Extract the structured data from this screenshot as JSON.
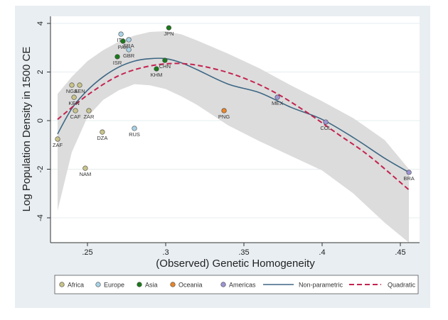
{
  "chart_data": {
    "type": "scatter",
    "title": "",
    "xlabel": "(Observed) Genetic Homogeneity",
    "ylabel": "Log Population Density in 1500 CE",
    "xlim": [
      0.227,
      0.452
    ],
    "ylim": [
      -5.0,
      4.3
    ],
    "xticks": [
      0.25,
      0.3,
      0.35,
      0.4,
      0.45
    ],
    "xtick_labels": [
      ".25",
      ".3",
      ".35",
      ".4",
      ".45"
    ],
    "yticks": [
      4,
      2,
      0,
      -2,
      -4
    ],
    "ytick_labels": [
      "4",
      "2",
      "0",
      "-2",
      "-4"
    ],
    "grid": true,
    "legend_position": "bottom",
    "groups": [
      {
        "name": "Africa",
        "color": "#c8c38a"
      },
      {
        "name": "Europe",
        "color": "#a9d3e6"
      },
      {
        "name": "Asia",
        "color": "#1a7a1a"
      },
      {
        "name": "Oceania",
        "color": "#e8862a"
      },
      {
        "name": "Americas",
        "color": "#9c94d4"
      }
    ],
    "points": [
      {
        "label": "JPN",
        "group": "Asia",
        "x": 0.302,
        "y": 3.82
      },
      {
        "label": "ITA",
        "group": "Europe",
        "x": 0.2714,
        "y": 3.56
      },
      {
        "label": "PAK",
        "group": "Asia",
        "x": 0.2727,
        "y": 3.27
      },
      {
        "label": "FRA",
        "group": "Europe",
        "x": 0.2764,
        "y": 3.33
      },
      {
        "label": "GBR",
        "group": "Europe",
        "x": 0.2764,
        "y": 2.92
      },
      {
        "label": "ISR",
        "group": "Asia",
        "x": 0.2691,
        "y": 2.63
      },
      {
        "label": "CHN",
        "group": "Asia",
        "x": 0.2995,
        "y": 2.48
      },
      {
        "label": "KHM",
        "group": "Asia",
        "x": 0.2941,
        "y": 2.13
      },
      {
        "label": "NGA",
        "group": "Africa",
        "x": 0.24,
        "y": 1.46
      },
      {
        "label": "SEN",
        "group": "Africa",
        "x": 0.245,
        "y": 1.46
      },
      {
        "label": "KEN",
        "group": "Africa",
        "x": 0.2414,
        "y": 0.96
      },
      {
        "label": "CAF",
        "group": "Africa",
        "x": 0.2423,
        "y": 0.41
      },
      {
        "label": "ZAR",
        "group": "Africa",
        "x": 0.2509,
        "y": 0.41
      },
      {
        "label": "ZAF",
        "group": "Africa",
        "x": 0.2309,
        "y": -0.76
      },
      {
        "label": "DZA",
        "group": "Africa",
        "x": 0.2595,
        "y": -0.47
      },
      {
        "label": "RUS",
        "group": "Europe",
        "x": 0.28,
        "y": -0.32
      },
      {
        "label": "NAM",
        "group": "Africa",
        "x": 0.2486,
        "y": -1.96
      },
      {
        "label": "PNG",
        "group": "Oceania",
        "x": 0.3373,
        "y": 0.41
      },
      {
        "label": "MEX",
        "group": "Americas",
        "x": 0.3714,
        "y": 0.96
      },
      {
        "label": "COL",
        "group": "Americas",
        "x": 0.4023,
        "y": -0.06
      },
      {
        "label": "BRA",
        "group": "Americas",
        "x": 0.4555,
        "y": -2.13
      }
    ],
    "series": [
      {
        "name": "Non-parametric",
        "style": "solid",
        "color": "#3d6784",
        "x": [
          0.2309,
          0.24,
          0.25,
          0.26,
          0.27,
          0.28,
          0.29,
          0.3,
          0.31,
          0.32,
          0.34,
          0.36,
          0.38,
          0.4,
          0.42,
          0.44,
          0.4555
        ],
        "y": [
          -0.55,
          0.5,
          1.25,
          1.8,
          2.2,
          2.45,
          2.55,
          2.55,
          2.38,
          2.1,
          1.5,
          1.15,
          0.55,
          0.05,
          -0.7,
          -1.55,
          -2.13
        ]
      },
      {
        "name": "Quadratic",
        "style": "dashed",
        "color": "#c4234f",
        "x": [
          0.2309,
          0.25,
          0.27,
          0.29,
          0.31,
          0.33,
          0.35,
          0.37,
          0.39,
          0.41,
          0.43,
          0.4555
        ],
        "y": [
          0.05,
          1.05,
          1.85,
          2.25,
          2.35,
          2.15,
          1.75,
          1.15,
          0.35,
          -0.55,
          -1.45,
          -2.85
        ]
      }
    ],
    "confidence_band": {
      "color": "#dcdcdc",
      "x": [
        0.2309,
        0.24,
        0.25,
        0.26,
        0.27,
        0.28,
        0.29,
        0.3,
        0.31,
        0.32,
        0.34,
        0.36,
        0.38,
        0.4,
        0.42,
        0.44,
        0.4555
      ],
      "upper": [
        1.1,
        1.8,
        2.45,
        2.9,
        3.25,
        3.5,
        3.65,
        3.68,
        3.55,
        3.3,
        2.75,
        2.15,
        1.45,
        0.8,
        0.1,
        -0.8,
        -2.0
      ],
      "lower": [
        -3.7,
        -1.3,
        0.15,
        0.85,
        1.25,
        1.5,
        1.45,
        1.3,
        1.0,
        0.65,
        -0.2,
        -0.85,
        -1.45,
        -2.05,
        -3.0,
        -4.2,
        -5.05
      ]
    }
  }
}
